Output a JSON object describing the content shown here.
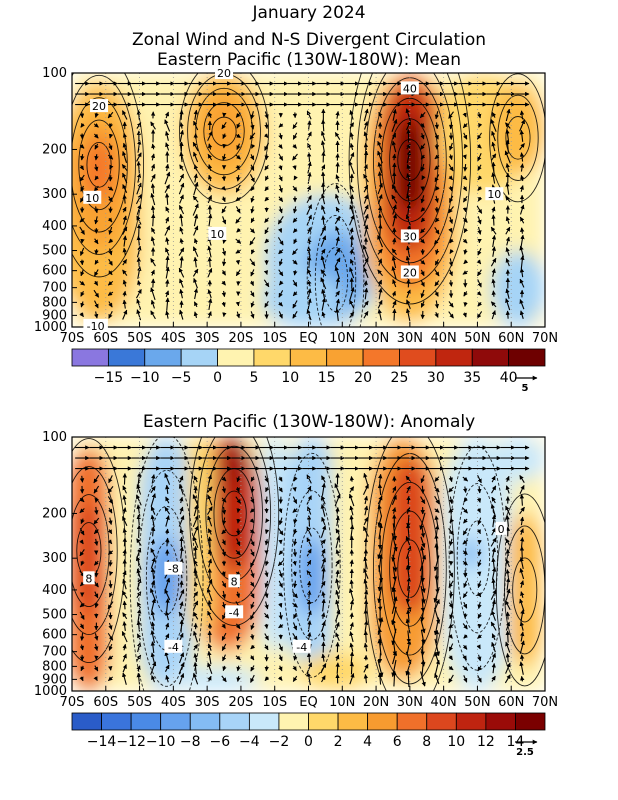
{
  "titles": {
    "main": "January 2024",
    "subtitle": "Zonal Wind and N-S Divergent Circulation",
    "panel1": "Eastern Pacific (130W-180W): Mean",
    "panel2": "Eastern Pacific (130W-180W): Anomaly"
  },
  "chart_data": [
    {
      "type": "heatmap",
      "title": "Eastern Pacific (130W-180W): Mean",
      "x_ticks": [
        "70S",
        "60S",
        "50S",
        "40S",
        "30S",
        "20S",
        "10S",
        "EQ",
        "10N",
        "20N",
        "30N",
        "40N",
        "50N",
        "60N",
        "70N"
      ],
      "y_ticks": [
        "100",
        "200",
        "300",
        "400",
        "500",
        "600",
        "700",
        "800",
        "900",
        "1000"
      ],
      "y_scale": "log-pressure",
      "ylim": [
        1000,
        100
      ],
      "xlim": [
        -70,
        70
      ],
      "colorbar": {
        "labels": [
          "-15",
          "-10",
          "-5",
          "0",
          "5",
          "10",
          "15",
          "20",
          "25",
          "30",
          "35",
          "40"
        ],
        "colors": [
          "#8a77e0",
          "#3a78d8",
          "#6aa8ec",
          "#a6d4f6",
          "#fff3b0",
          "#ffd86a",
          "#fdbb45",
          "#f9a232",
          "#f4772a",
          "#e04c1e",
          "#c0260f",
          "#8f0a0a",
          "#6e0000"
        ]
      },
      "vector_reference": "5",
      "contour_labels": [
        "20",
        "20",
        "40",
        "10",
        "10",
        "-10",
        "30",
        "20",
        "10"
      ]
    },
    {
      "type": "heatmap",
      "title": "Eastern Pacific (130W-180W): Anomaly",
      "x_ticks": [
        "70S",
        "60S",
        "50S",
        "40S",
        "30S",
        "20S",
        "10S",
        "EQ",
        "10N",
        "20N",
        "30N",
        "40N",
        "50N",
        "60N",
        "70N"
      ],
      "y_ticks": [
        "100",
        "200",
        "300",
        "400",
        "500",
        "600",
        "700",
        "800",
        "900",
        "1000"
      ],
      "y_scale": "log-pressure",
      "ylim": [
        1000,
        100
      ],
      "xlim": [
        -70,
        70
      ],
      "colorbar": {
        "labels": [
          "-14",
          "-12",
          "-10",
          "-8",
          "-6",
          "-4",
          "-2",
          "0",
          "2",
          "4",
          "6",
          "8",
          "10",
          "12",
          "14"
        ],
        "colors": [
          "#2a5cc8",
          "#3a74dc",
          "#4a8ae6",
          "#66a2ee",
          "#84bcf4",
          "#a8d4f8",
          "#c9e8fa",
          "#fff3b0",
          "#ffd86a",
          "#fdbb45",
          "#f79b30",
          "#f0702a",
          "#dc471e",
          "#bf2410",
          "#9a0b08",
          "#7a0000"
        ]
      },
      "vector_reference": "2.5",
      "contour_labels": [
        "8",
        "-8",
        "8",
        "-4",
        "-4",
        "-4",
        "0"
      ]
    }
  ]
}
